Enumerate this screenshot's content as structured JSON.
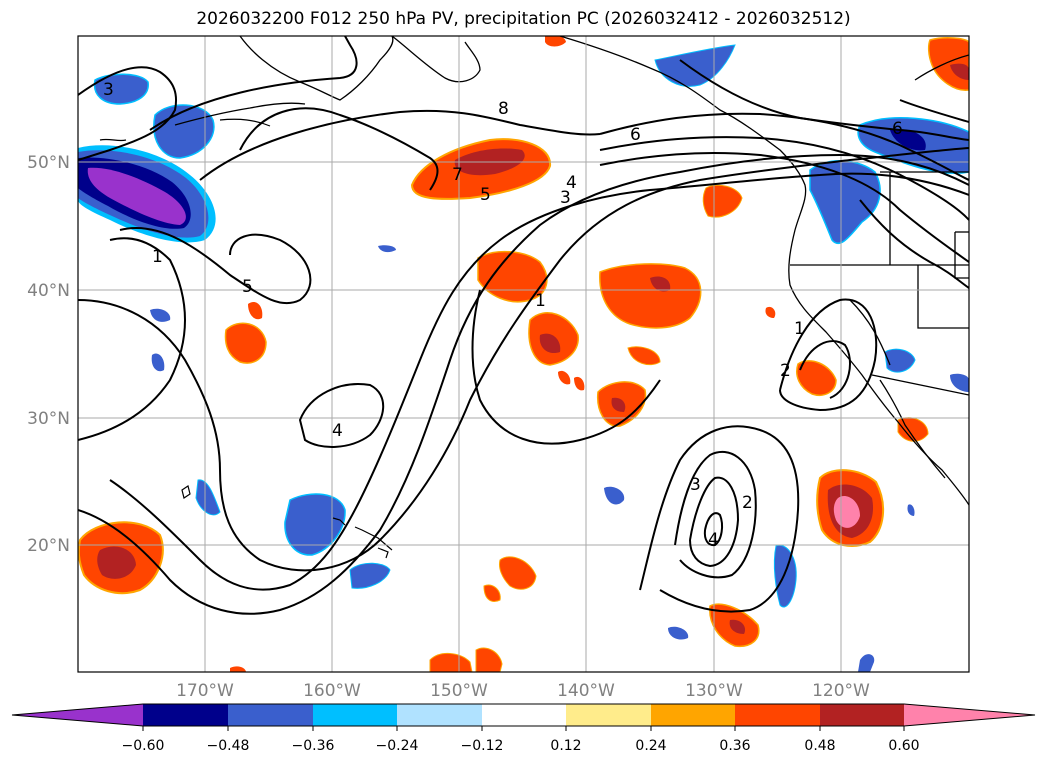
{
  "title": "2026032200 F012 250 hPa PV, precipitation PC (2026032412 - 2026032512)",
  "map": {
    "lat_labels": [
      "50°N",
      "40°N",
      "30°N",
      "20°N"
    ],
    "lon_labels": [
      "170°W",
      "160°W",
      "150°W",
      "140°W",
      "130°W",
      "120°W"
    ],
    "contour_labels": [
      "1",
      "2",
      "3",
      "4",
      "5",
      "6",
      "7",
      "8",
      "1",
      "2",
      "3",
      "4",
      "5",
      "6",
      "3",
      "4",
      "1",
      "2",
      "3",
      "4"
    ]
  },
  "colorbar": {
    "ticks": [
      "−0.60",
      "−0.48",
      "−0.36",
      "−0.24",
      "−0.12",
      "0.12",
      "0.24",
      "0.36",
      "0.48",
      "0.60"
    ],
    "colors": [
      "#9932cc",
      "#00008b",
      "#3a5fcd",
      "#00bfff",
      "#b0e2ff",
      "#ffffff",
      "#ffec8b",
      "#ffa500",
      "#ff4500",
      "#b22222",
      "#ff82ab"
    ]
  }
}
